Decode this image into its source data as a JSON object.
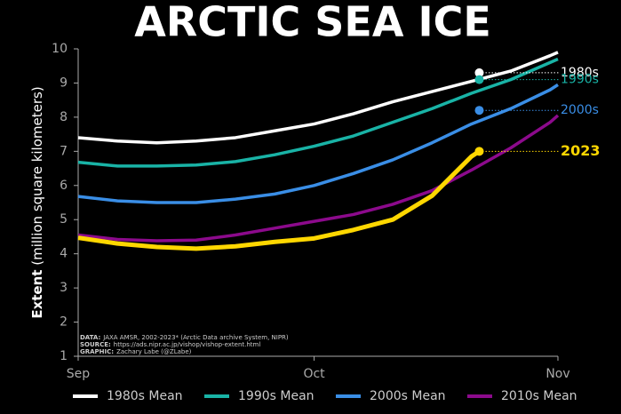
{
  "chart_data": {
    "type": "line",
    "title": "ARCTIC SEA ICE",
    "ylabel_bold": "Extent",
    "ylabel": "(million square kilometers)",
    "x": [
      0,
      5,
      10,
      15,
      20,
      25,
      30,
      35,
      40,
      45,
      50,
      55,
      60,
      61
    ],
    "xlim": [
      0,
      61
    ],
    "xticks": [
      {
        "value": 0,
        "label": "Sep"
      },
      {
        "value": 30,
        "label": "Oct"
      },
      {
        "value": 61,
        "label": "Nov"
      }
    ],
    "ylim": [
      1,
      10
    ],
    "yticks": [
      1,
      2,
      3,
      4,
      5,
      6,
      7,
      8,
      9,
      10
    ],
    "marker_x": 51,
    "series": [
      {
        "name": "1980s Mean",
        "tag": "1980s",
        "color": "#ffffff",
        "marker": 9.3,
        "in_legend": true,
        "values": [
          7.4,
          7.3,
          7.25,
          7.3,
          7.4,
          7.6,
          7.8,
          8.1,
          8.45,
          8.75,
          9.05,
          9.35,
          9.8,
          9.9
        ]
      },
      {
        "name": "1990s Mean",
        "tag": "1990s",
        "color": "#19b3a6",
        "marker": 9.1,
        "in_legend": true,
        "values": [
          6.68,
          6.57,
          6.57,
          6.6,
          6.7,
          6.9,
          7.15,
          7.45,
          7.85,
          8.25,
          8.7,
          9.1,
          9.6,
          9.7
        ]
      },
      {
        "name": "2000s Mean",
        "tag": "2000s",
        "color": "#3a8ee6",
        "marker": 8.2,
        "in_legend": true,
        "values": [
          5.68,
          5.55,
          5.5,
          5.5,
          5.6,
          5.75,
          6.0,
          6.35,
          6.75,
          7.25,
          7.8,
          8.25,
          8.8,
          8.95
        ]
      },
      {
        "name": "2010s Mean",
        "color": "#8c0a8c",
        "in_legend": true,
        "values": [
          4.55,
          4.42,
          4.38,
          4.4,
          4.55,
          4.75,
          4.95,
          5.15,
          5.45,
          5.85,
          6.45,
          7.1,
          7.85,
          8.05
        ]
      },
      {
        "name": "2023",
        "tag": "2023",
        "color": "#ffd700",
        "marker": 7.0,
        "in_legend": false,
        "x": [
          0,
          5,
          10,
          15,
          20,
          25,
          30,
          35,
          40,
          45,
          50,
          51
        ],
        "values": [
          4.47,
          4.3,
          4.2,
          4.15,
          4.22,
          4.35,
          4.45,
          4.7,
          5.0,
          5.7,
          6.85,
          7.0
        ]
      }
    ],
    "credits": [
      {
        "label": "DATA:",
        "text": "JAXA AMSR, 2002-2023* (Arctic Data archive System, NIPR)"
      },
      {
        "label": "SOURCE:",
        "text": "https://ads.nipr.ac.jp/vishop/vishop-extent.html"
      },
      {
        "label": "GRAPHIC:",
        "text": "Zachary Labe (@ZLabe)"
      }
    ]
  }
}
